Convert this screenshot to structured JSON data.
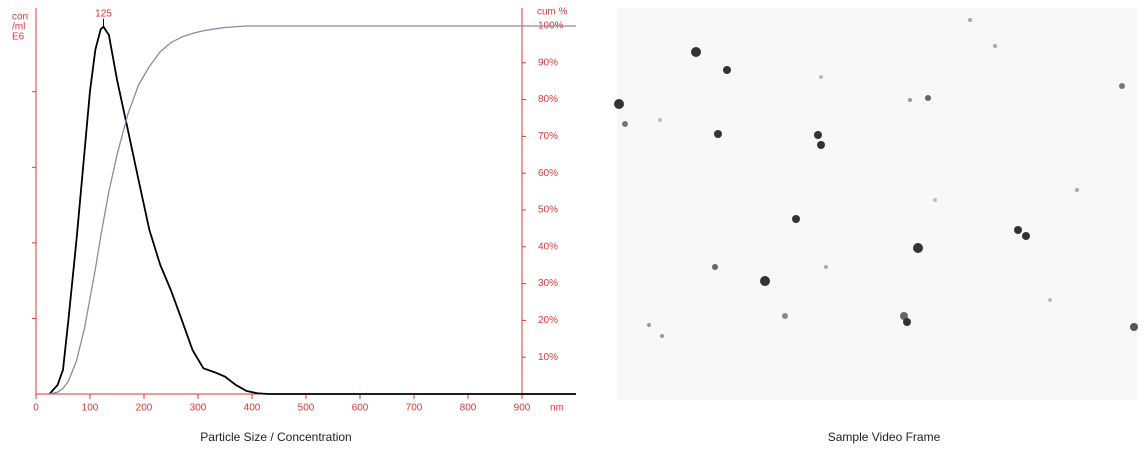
{
  "chart_data": {
    "type": "line",
    "title": "Particle Size / Concentration",
    "xlabel": "nm",
    "ylabel_lines": [
      "con",
      "/ml",
      "E6"
    ],
    "y2label": "cum %",
    "annotation": {
      "x": 125,
      "y": 4.86,
      "text": "125"
    },
    "x": [
      25,
      40,
      50,
      60,
      75,
      90,
      100,
      110,
      120,
      125,
      135,
      150,
      170,
      190,
      210,
      230,
      250,
      270,
      290,
      310,
      330,
      350,
      370,
      390,
      410,
      430,
      1000
    ],
    "series": [
      {
        "color": "#000000",
        "values": [
          0,
          0.12,
          0.32,
          0.98,
          2.04,
          3.22,
          4.01,
          4.56,
          4.83,
          4.86,
          4.75,
          4.16,
          3.5,
          2.83,
          2.17,
          1.71,
          1.37,
          0.98,
          0.58,
          0.34,
          0.29,
          0.23,
          0.12,
          0.04,
          0.01,
          0,
          0
        ]
      },
      {
        "color": "#8a8aa8",
        "axis": "y2",
        "values": [
          0,
          0.5,
          1.5,
          3.5,
          9,
          18,
          26,
          34,
          43,
          47,
          55,
          65,
          76,
          84,
          89,
          93,
          95.5,
          97,
          98,
          98.7,
          99.2,
          99.6,
          99.8,
          100,
          100,
          100,
          100
        ]
      }
    ],
    "xlim": [
      0,
      1000
    ],
    "xticks": [
      0,
      100,
      200,
      300,
      400,
      500,
      600,
      700,
      800,
      900
    ],
    "ylim": [
      0,
      4.87
    ],
    "yticks": [
      1,
      2,
      3,
      4
    ],
    "y2lim": [
      0,
      100
    ],
    "y2ticks": [
      {
        "value": 10,
        "label": "10%"
      },
      {
        "value": 20,
        "label": "20%"
      },
      {
        "value": 30,
        "label": "30%"
      },
      {
        "value": 40,
        "label": "40%"
      },
      {
        "value": 50,
        "label": "50%"
      },
      {
        "value": 60,
        "label": "60%"
      },
      {
        "value": 70,
        "label": "70%"
      },
      {
        "value": 80,
        "label": "80%"
      },
      {
        "value": 90,
        "label": "90%"
      },
      {
        "value": 100,
        "label": "100%"
      }
    ],
    "axis_color": "#e03535"
  },
  "image": {
    "caption": "Sample Video Frame"
  }
}
